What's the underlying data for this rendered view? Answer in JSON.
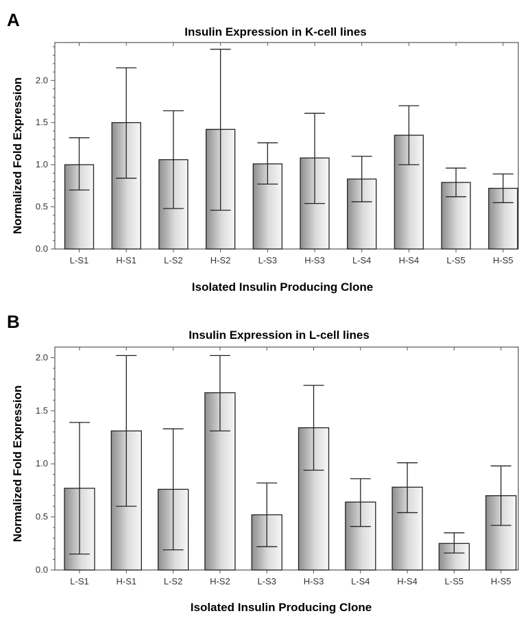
{
  "chart_data": [
    {
      "panel": "A",
      "type": "bar",
      "title": "Insulin Expression in K-cell lines",
      "xlabel": "Isolated Insulin Producing Clone",
      "ylabel": "Normalized Fold Expression",
      "categories": [
        "L-S1",
        "H-S1",
        "L-S2",
        "H-S2",
        "L-S3",
        "H-S3",
        "L-S4",
        "H-S4",
        "L-S5",
        "H-S5"
      ],
      "values": [
        1.0,
        1.5,
        1.06,
        1.42,
        1.01,
        1.08,
        0.83,
        1.35,
        0.79,
        0.72
      ],
      "error_low": [
        0.7,
        0.84,
        0.48,
        0.46,
        0.77,
        0.54,
        0.56,
        1.0,
        0.62,
        0.55
      ],
      "error_high": [
        1.32,
        2.15,
        1.64,
        2.37,
        1.26,
        1.61,
        1.1,
        1.7,
        0.96,
        0.89
      ],
      "ylim": [
        0,
        2.45
      ],
      "yticks": [
        "0.0",
        "0.5",
        "1.0",
        "1.5",
        "2.0"
      ],
      "grid": false
    },
    {
      "panel": "B",
      "type": "bar",
      "title": "Insulin Expression in L-cell lines",
      "xlabel": "Isolated Insulin Producing Clone",
      "ylabel": "Normalized Fold Expression",
      "categories": [
        "L-S1",
        "H-S1",
        "L-S2",
        "H-S2",
        "L-S3",
        "H-S3",
        "L-S4",
        "H-S4",
        "L-S5",
        "H-S5"
      ],
      "values": [
        0.77,
        1.31,
        0.76,
        1.67,
        0.52,
        1.34,
        0.64,
        0.78,
        0.25,
        0.7
      ],
      "error_low": [
        0.15,
        0.6,
        0.19,
        1.31,
        0.22,
        0.94,
        0.41,
        0.54,
        0.16,
        0.42
      ],
      "error_high": [
        1.39,
        2.02,
        1.33,
        2.02,
        0.82,
        1.74,
        0.86,
        1.01,
        0.35,
        0.98
      ],
      "ylim": [
        0,
        2.1
      ],
      "yticks": [
        "0.0",
        "0.5",
        "1.0",
        "1.5",
        "2.0"
      ],
      "grid": false
    }
  ]
}
